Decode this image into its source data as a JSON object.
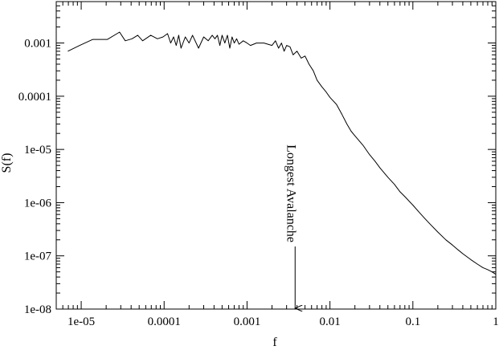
{
  "chart_data": {
    "type": "line",
    "title": "",
    "xlabel": "f",
    "ylabel": "S(f)",
    "x_scale": "log",
    "y_scale": "log",
    "xlim": [
      5e-06,
      1
    ],
    "ylim": [
      1e-08,
      0.006
    ],
    "x_ticks": [
      {
        "value": 1e-05,
        "label": "1e-05"
      },
      {
        "value": 0.0001,
        "label": "0.0001"
      },
      {
        "value": 0.001,
        "label": "0.001"
      },
      {
        "value": 0.01,
        "label": "0.01"
      },
      {
        "value": 0.1,
        "label": "0.1"
      },
      {
        "value": 1,
        "label": "1"
      }
    ],
    "y_ticks": [
      {
        "value": 1e-08,
        "label": "1e-08"
      },
      {
        "value": 1e-07,
        "label": "1e-07"
      },
      {
        "value": 1e-06,
        "label": "1e-06"
      },
      {
        "value": 1e-05,
        "label": "1e-05"
      },
      {
        "value": 0.0001,
        "label": "0.0001"
      },
      {
        "value": 0.001,
        "label": "0.001"
      }
    ],
    "grid": false,
    "legend": "none",
    "series": [
      {
        "x": [
          6.9e-06,
          9.6e-06,
          1.38e-05,
          2.07e-05,
          2.9e-05,
          3.4e-05,
          4.1e-05,
          4.8e-05,
          5.5e-05,
          6.9e-05,
          8.3e-05,
          9.7e-05,
          0.00011,
          0.00012,
          0.00013,
          0.00014,
          0.00015,
          0.00016,
          0.00018,
          0.0002,
          0.00022,
          0.00026,
          0.0003,
          0.00034,
          0.00038,
          0.00041,
          0.00044,
          0.00047,
          0.0005,
          0.00054,
          0.00058,
          0.00062,
          0.00066,
          0.0007,
          0.00075,
          0.0008,
          0.0009,
          0.001,
          0.0011,
          0.0013,
          0.0016,
          0.002,
          0.0022,
          0.0024,
          0.0026,
          0.0028,
          0.003,
          0.0033,
          0.0036,
          0.004,
          0.0045,
          0.005,
          0.0056,
          0.0063,
          0.007,
          0.008,
          0.009,
          0.01,
          0.012,
          0.014,
          0.016,
          0.018,
          0.02,
          0.025,
          0.03,
          0.035,
          0.04,
          0.05,
          0.06,
          0.07,
          0.08,
          0.1,
          0.12,
          0.14,
          0.16,
          0.2,
          0.25,
          0.3,
          0.35,
          0.4,
          0.5,
          0.6,
          0.7,
          0.8,
          0.9,
          1.0
        ],
        "y": [
          0.0007,
          0.0009,
          0.00117,
          0.00117,
          0.0016,
          0.0011,
          0.0012,
          0.0014,
          0.0011,
          0.0014,
          0.0012,
          0.0013,
          0.0015,
          0.001,
          0.0013,
          0.0009,
          0.0014,
          0.0008,
          0.0013,
          0.001,
          0.0014,
          0.0008,
          0.0013,
          0.0011,
          0.0014,
          0.0012,
          0.0014,
          0.0009,
          0.0014,
          0.001,
          0.0014,
          0.0008,
          0.0013,
          0.001,
          0.0012,
          0.00095,
          0.0011,
          0.001,
          0.0009,
          0.001,
          0.001,
          0.0009,
          0.0011,
          0.0008,
          0.001,
          0.0007,
          0.0009,
          0.00085,
          0.0006,
          0.0007,
          0.00052,
          0.00057,
          0.0004,
          0.0003,
          0.0002,
          0.00015,
          0.00012,
          9.5e-05,
          7e-05,
          4.5e-05,
          3e-05,
          2.2e-05,
          1.8e-05,
          1.2e-05,
          8e-06,
          6e-06,
          4.5e-06,
          3e-06,
          2.2e-06,
          1.6e-06,
          1.3e-06,
          9e-07,
          6.5e-07,
          5e-07,
          4e-07,
          2.8e-07,
          2e-07,
          1.6e-07,
          1.3e-07,
          1.1e-07,
          8.5e-08,
          7e-08,
          6e-08,
          5.5e-08,
          5e-08,
          4.5e-08
        ]
      }
    ],
    "annotation": {
      "text": "Longest Avalanche",
      "arrow_from": {
        "x": 0.0038,
        "y": 1.5e-07
      },
      "arrow_to": {
        "x": 0.0038,
        "y": 1e-08
      }
    }
  }
}
